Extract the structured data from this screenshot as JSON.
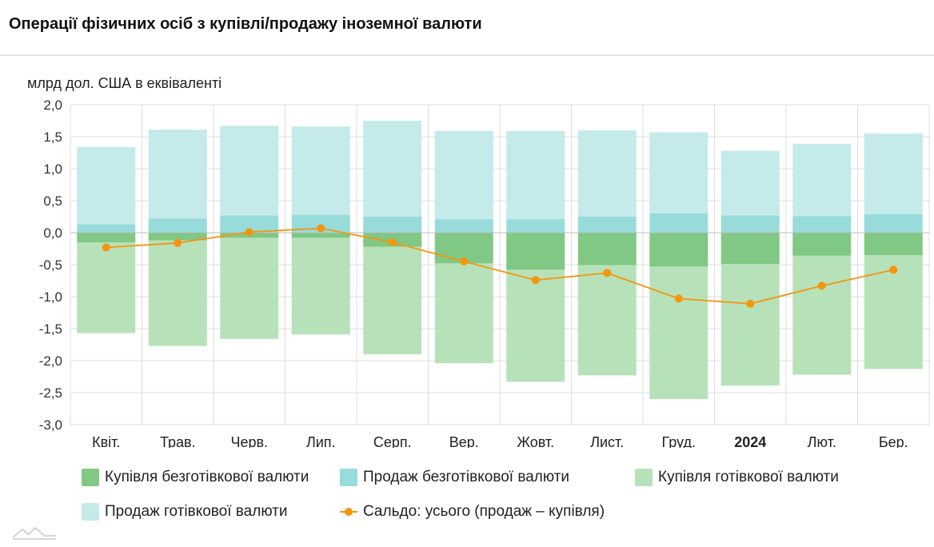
{
  "title": "Операції фізичних осіб з купівлі/продажу іноземної валюти",
  "chart_data": {
    "type": "bar",
    "stacked": true,
    "ylabel": "млрд дол. США в еквіваленті",
    "ylim": [
      -3.0,
      2.0
    ],
    "yticks": [
      "2,0",
      "1,5",
      "1,0",
      "0,5",
      "0,0",
      "-0,5",
      "-1,0",
      "-1,5",
      "-2,0",
      "-2,5",
      "-3,0"
    ],
    "ytick_values": [
      2.0,
      1.5,
      1.0,
      0.5,
      0.0,
      -0.5,
      -1.0,
      -1.5,
      -2.0,
      -2.5,
      -3.0
    ],
    "categories": [
      "Квіт.",
      "Трав.",
      "Черв.",
      "Лип.",
      "Серп.",
      "Вер.",
      "Жовт.",
      "Лист.",
      "Груд.",
      "2024",
      "Лют.",
      "Бер."
    ],
    "bold_categories": [
      "2024"
    ],
    "series": [
      {
        "name": "Купівля безготівкової валюти",
        "kind": "bar",
        "color": "#80c883",
        "values": [
          -0.15,
          -0.12,
          -0.08,
          -0.08,
          -0.22,
          -0.48,
          -0.58,
          -0.51,
          -0.53,
          -0.49,
          -0.36,
          -0.35
        ]
      },
      {
        "name": "Продаж безготівкової валюти",
        "kind": "bar",
        "color": "#97dcdb",
        "values": [
          0.13,
          0.22,
          0.27,
          0.28,
          0.25,
          0.21,
          0.21,
          0.25,
          0.3,
          0.27,
          0.26,
          0.29
        ]
      },
      {
        "name": "Купівля готівкової валюти",
        "kind": "bar",
        "color": "#b7e2b9",
        "values": [
          -1.42,
          -1.65,
          -1.58,
          -1.51,
          -1.68,
          -1.56,
          -1.75,
          -1.72,
          -2.07,
          -1.9,
          -1.86,
          -1.78
        ]
      },
      {
        "name": "Продаж готівкової валюти",
        "kind": "bar",
        "color": "#c4eaea",
        "values": [
          1.21,
          1.39,
          1.4,
          1.38,
          1.5,
          1.38,
          1.38,
          1.35,
          1.27,
          1.01,
          1.13,
          1.26
        ]
      },
      {
        "name": "Сальдо: усього (продаж – купівля)",
        "kind": "line",
        "color": "#f5950e",
        "values": [
          -0.23,
          -0.16,
          0.01,
          0.07,
          -0.15,
          -0.45,
          -0.74,
          -0.63,
          -1.03,
          -1.11,
          -0.83,
          -0.58
        ]
      }
    ],
    "legend": [
      "Купівля безготівкової валюти",
      "Продаж безготівкової валюти",
      "Купівля готівкової валюти",
      "Продаж готівкової валюти",
      "Сальдо: усього (продаж – купівля)"
    ]
  },
  "colors": {
    "buy_noncash": "#80c883",
    "sell_noncash": "#97dcdb",
    "buy_cash": "#b7e2b9",
    "sell_cash": "#c4eaea",
    "balance": "#f5950e",
    "grid": "#dcdcdc",
    "zero_line": "#bdbdbd"
  },
  "logo_icon": "mountain-logo-icon"
}
